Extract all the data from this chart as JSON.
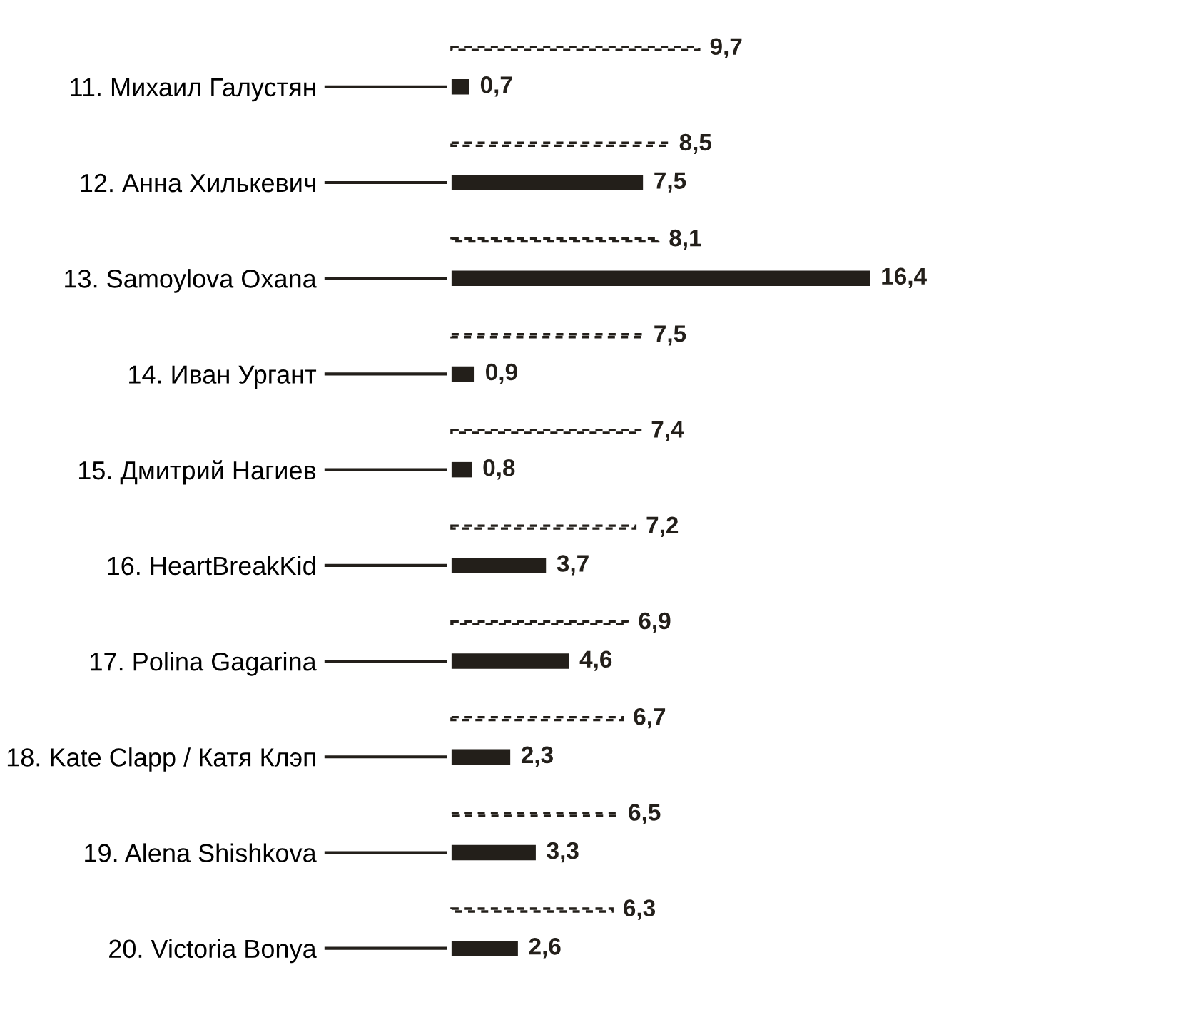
{
  "chart_data": {
    "type": "bar",
    "orientation": "horizontal",
    "categories": [
      "11. Михаил Галустян",
      "12. Анна Хилькевич",
      "13. Samoylova Oxana",
      "14. Иван Ургант",
      "15. Дмитрий Нагиев",
      "16. HeartBreakKid",
      "17. Polina Gagarina",
      "18. Kate Clapp / Катя Клэп",
      "19. Alena Shishkova",
      "20. Victoria Bonya"
    ],
    "series": [
      {
        "color": "#231f1a",
        "line_style": "dashed",
        "values": [
          9.7,
          8.5,
          8.1,
          7.5,
          7.4,
          7.2,
          6.9,
          6.7,
          6.5,
          6.3
        ],
        "value_labels": [
          "9,7",
          "8,5",
          "8,1",
          "7,5",
          "7,4",
          "7,2",
          "6,9",
          "6,7",
          "6,5",
          "6,3"
        ]
      },
      {
        "color": "#231f1a",
        "line_style": "solid",
        "values": [
          0.7,
          7.5,
          16.4,
          0.9,
          0.8,
          3.7,
          4.6,
          2.3,
          3.3,
          2.6
        ],
        "value_labels": [
          "0,7",
          "7,5",
          "16,4",
          "0,9",
          "0,8",
          "3,7",
          "4,6",
          "2,3",
          "3,3",
          "2,6"
        ]
      }
    ],
    "grid": false,
    "legend": false
  }
}
